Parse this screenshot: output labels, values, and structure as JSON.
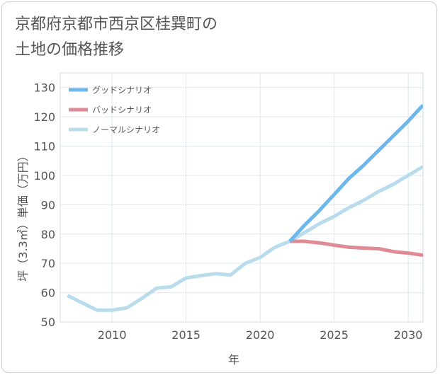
{
  "chart_data": {
    "type": "line",
    "title_line1": "京都府京都市西京区桂巽町の",
    "title_line2": "土地の価格推移",
    "xlabel": "年",
    "ylabel": "坪（3.3㎡）単価（万円）",
    "xlim": [
      2006.5,
      2031
    ],
    "ylim": [
      50,
      135
    ],
    "x_ticks": [
      2010,
      2015,
      2020,
      2025,
      2030
    ],
    "y_ticks": [
      50,
      60,
      70,
      80,
      90,
      100,
      110,
      120,
      130
    ],
    "grid": true,
    "legend_position": "top-left",
    "series": [
      {
        "name": "グッドシナリオ",
        "color": "#6cb8ec",
        "x": [
          2022,
          2023,
          2024,
          2025,
          2026,
          2027,
          2028,
          2029,
          2030,
          2031
        ],
        "y": [
          77.5,
          83,
          88,
          93.5,
          99,
          103.5,
          108.5,
          113.5,
          118.5,
          124
        ]
      },
      {
        "name": "バッドシナリオ",
        "color": "#e08a96",
        "x": [
          2022,
          2023,
          2024,
          2025,
          2026,
          2027,
          2028,
          2029,
          2030,
          2031
        ],
        "y": [
          77.5,
          77.5,
          77,
          76.2,
          75.5,
          75.2,
          75,
          74,
          73.5,
          72.8
        ]
      },
      {
        "name": "ノーマルシナリオ",
        "color": "#b9dcec",
        "x": [
          2007,
          2008,
          2009,
          2010,
          2011,
          2012,
          2013,
          2014,
          2015,
          2016,
          2017,
          2018,
          2019,
          2020,
          2021,
          2022,
          2023,
          2024,
          2025,
          2026,
          2027,
          2028,
          2029,
          2030,
          2031
        ],
        "y": [
          59,
          56.5,
          54,
          54,
          54.8,
          58,
          61.5,
          62,
          65,
          65.8,
          66.5,
          66,
          70,
          72,
          75.5,
          77.5,
          80.5,
          83.5,
          86,
          89,
          91.5,
          94.5,
          97,
          100,
          103
        ]
      }
    ]
  }
}
